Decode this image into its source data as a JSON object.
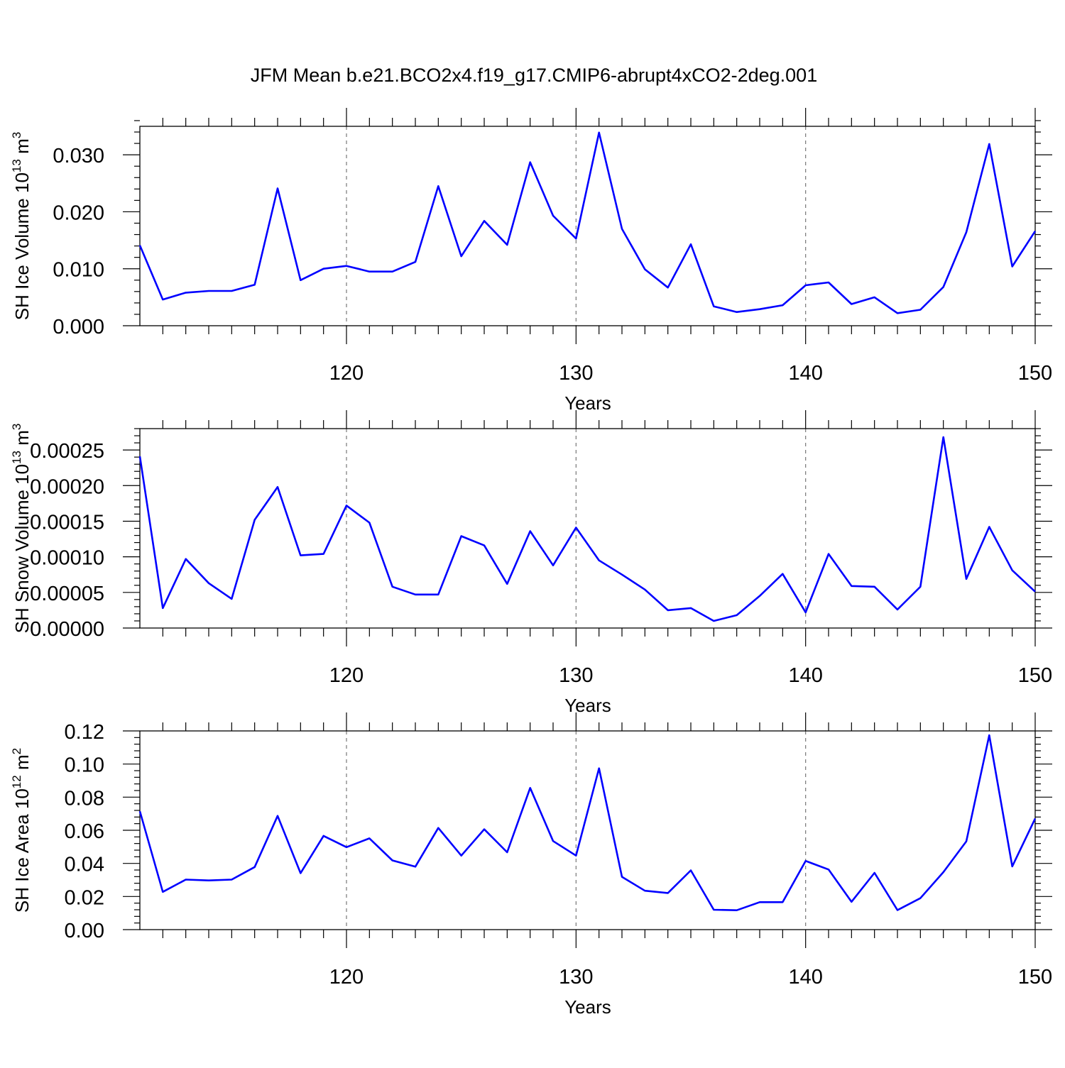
{
  "title": "JFM Mean b.e21.BCO2x4.f19_g17.CMIP6-abrupt4xCO2-2deg.001",
  "colors": {
    "series": "#0000ff",
    "axes": "#000000",
    "grid": "#777777"
  },
  "chart_data": [
    {
      "type": "line",
      "ylabel": "SH Ice Volume 10",
      "ylabel_exp": "13",
      "ylabel_unit": " m",
      "ylabel_unit_exp": "3",
      "xlabel": "Years",
      "xlim": [
        111,
        150
      ],
      "ylim": [
        0,
        0.035
      ],
      "yticks": [
        0.0,
        0.01,
        0.02,
        0.03
      ],
      "ytick_labels": [
        "0.000",
        "0.010",
        "0.020",
        "0.030"
      ],
      "xticks": [
        120,
        130,
        140,
        150
      ],
      "xtick_labels": [
        "120",
        "130",
        "140",
        "150"
      ],
      "grid_x": [
        120,
        130,
        140
      ],
      "x": [
        111,
        112,
        113,
        114,
        115,
        116,
        117,
        118,
        119,
        120,
        121,
        122,
        123,
        124,
        125,
        126,
        127,
        128,
        129,
        130,
        131,
        132,
        133,
        134,
        135,
        136,
        137,
        138,
        139,
        140,
        141,
        142,
        143,
        144,
        145,
        146,
        147,
        148,
        149,
        150
      ],
      "y": [
        0.0141,
        0.0046,
        0.0058,
        0.0061,
        0.0061,
        0.0072,
        0.0241,
        0.008,
        0.01,
        0.0105,
        0.0095,
        0.0095,
        0.0112,
        0.0245,
        0.0122,
        0.0184,
        0.0142,
        0.0287,
        0.0193,
        0.0153,
        0.0339,
        0.017,
        0.0099,
        0.0067,
        0.0143,
        0.0034,
        0.0024,
        0.0029,
        0.0036,
        0.0071,
        0.0076,
        0.0038,
        0.005,
        0.0022,
        0.0028,
        0.0068,
        0.0164,
        0.0319,
        0.0104,
        0.0166
      ]
    },
    {
      "type": "line",
      "ylabel": "SH Snow Volume 10",
      "ylabel_exp": "13",
      "ylabel_unit": " m",
      "ylabel_unit_exp": "3",
      "xlabel": "Years",
      "xlim": [
        111,
        150
      ],
      "ylim": [
        0,
        0.00028
      ],
      "yticks": [
        0.0,
        5e-05,
        0.0001,
        0.00015,
        0.0002,
        0.00025
      ],
      "ytick_labels": [
        "0.00000",
        "0.00005",
        "0.00010",
        "0.00015",
        "0.00020",
        "0.00025"
      ],
      "xticks": [
        120,
        130,
        140,
        150
      ],
      "xtick_labels": [
        "120",
        "130",
        "140",
        "150"
      ],
      "grid_x": [
        120,
        130,
        140
      ],
      "x": [
        111,
        112,
        113,
        114,
        115,
        116,
        117,
        118,
        119,
        120,
        121,
        122,
        123,
        124,
        125,
        126,
        127,
        128,
        129,
        130,
        131,
        132,
        133,
        134,
        135,
        136,
        137,
        138,
        139,
        140,
        141,
        142,
        143,
        144,
        145,
        146,
        147,
        148,
        149,
        150
      ],
      "y": [
        0.000241,
        2.8e-05,
        9.7e-05,
        6.3e-05,
        4.1e-05,
        0.000152,
        0.000198,
        0.000102,
        0.000104,
        0.000172,
        0.000148,
        5.8e-05,
        4.7e-05,
        4.7e-05,
        0.000129,
        0.000116,
        6.2e-05,
        0.000136,
        8.8e-05,
        0.000141,
        9.5e-05,
        7.5e-05,
        5.4e-05,
        2.5e-05,
        2.8e-05,
        1e-05,
        1.8e-05,
        4.5e-05,
        7.6e-05,
        2.2e-05,
        0.000104,
        5.9e-05,
        5.8e-05,
        2.6e-05,
        5.8e-05,
        0.000268,
        6.9e-05,
        0.000142,
        8.1e-05,
        5.1e-05
      ]
    },
    {
      "type": "line",
      "ylabel": "SH Ice Area 10",
      "ylabel_exp": "12",
      "ylabel_unit": " m",
      "ylabel_unit_exp": "2",
      "xlabel": "Years",
      "xlim": [
        111,
        150
      ],
      "ylim": [
        0,
        0.12
      ],
      "yticks": [
        0.0,
        0.02,
        0.04,
        0.06,
        0.08,
        0.1,
        0.12
      ],
      "ytick_labels": [
        "0.00",
        "0.02",
        "0.04",
        "0.06",
        "0.08",
        "0.10",
        "0.12"
      ],
      "xticks": [
        120,
        130,
        140,
        150
      ],
      "xtick_labels": [
        "120",
        "130",
        "140",
        "150"
      ],
      "grid_x": [
        120,
        130,
        140
      ],
      "x": [
        111,
        112,
        113,
        114,
        115,
        116,
        117,
        118,
        119,
        120,
        121,
        122,
        123,
        124,
        125,
        126,
        127,
        128,
        129,
        130,
        131,
        132,
        133,
        134,
        135,
        136,
        137,
        138,
        139,
        140,
        141,
        142,
        143,
        144,
        145,
        146,
        147,
        148,
        149,
        150
      ],
      "y": [
        0.0715,
        0.0228,
        0.0302,
        0.0297,
        0.0302,
        0.0378,
        0.0687,
        0.0341,
        0.0566,
        0.0498,
        0.0551,
        0.0418,
        0.038,
        0.0614,
        0.0447,
        0.0606,
        0.0467,
        0.0856,
        0.0535,
        0.0447,
        0.0974,
        0.0319,
        0.0235,
        0.0221,
        0.0358,
        0.012,
        0.0117,
        0.0166,
        0.0166,
        0.0415,
        0.0363,
        0.0168,
        0.0343,
        0.0118,
        0.019,
        0.0347,
        0.0533,
        0.1174,
        0.0382,
        0.0671
      ]
    }
  ]
}
